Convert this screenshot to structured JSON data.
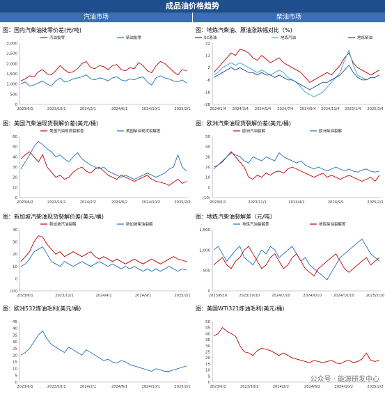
{
  "page_title": "成品油价格趋势",
  "left_header": "汽油市场",
  "right_header": "柴油市场",
  "watermark": "公众号 · 能源研发中心",
  "chart_data": [
    {
      "type": "line",
      "title": "图：国内汽柴油批零价差(元/吨)",
      "yticks": [
        "0",
        "500",
        "1,000",
        "1,500",
        "2,000",
        "2,500",
        "3,000"
      ],
      "ylim": [
        0,
        3000
      ],
      "xticks": [
        "2023/6/1",
        "2023/10/1",
        "2024/2/1",
        "2024/6/1",
        "2024/10/1",
        "2025/2/1"
      ],
      "series": [
        {
          "name": "汽油批零",
          "color": "#c00000",
          "values": [
            1150,
            1250,
            1400,
            1350,
            1600,
            1700,
            1500,
            1450,
            1650,
            1900,
            1700,
            1550,
            1600,
            1750,
            2000,
            2100,
            1800,
            1750,
            1900,
            1850,
            1700,
            1900,
            1950,
            1700,
            1650,
            1800,
            1750,
            2050,
            1900,
            1650,
            1550,
            1900,
            2100,
            2000,
            1800,
            1600,
            1450,
            1700,
            1650
          ]
        },
        {
          "name": "柴油批零",
          "color": "#1f6fc0",
          "values": [
            1000,
            1100,
            900,
            950,
            1050,
            1150,
            1000,
            900,
            1150,
            1300,
            1100,
            1150,
            1250,
            1300,
            1350,
            1450,
            1250,
            1200,
            1300,
            1250,
            1150,
            1300,
            1350,
            1200,
            1150,
            1250,
            1200,
            1300,
            1350,
            1100,
            950,
            1300,
            1400,
            1300,
            1250,
            1150,
            1100,
            1200,
            1050
          ]
        }
      ]
    },
    {
      "type": "line",
      "title": "图：地炼汽柴油、原油涨跌幅对比（%)",
      "yticks": [
        "-28",
        "-18",
        "-8",
        "2",
        "12",
        "22"
      ],
      "ylim": [
        -28,
        22
      ],
      "xticks": [
        "2024/1/4",
        "2024/3/4",
        "2024/5/4",
        "2024/7/4",
        "2024/9/4",
        "2024/11/4",
        "2025/1/4",
        "2025/3/4"
      ],
      "series": [
        {
          "name": "SC原油",
          "color": "#c00000",
          "values": [
            -2,
            2,
            6,
            10,
            14,
            12,
            17,
            16,
            14,
            10,
            8,
            12,
            9,
            6,
            8,
            10,
            6,
            4,
            2,
            0,
            -2,
            -6,
            -10,
            -8,
            -6,
            -4,
            -2,
            -4,
            0,
            4,
            10,
            14,
            6,
            2,
            0,
            -2,
            -4,
            -2,
            0
          ]
        },
        {
          "name": "地炼汽油",
          "color": "#33a5d9",
          "values": [
            -4,
            -2,
            2,
            4,
            6,
            4,
            6,
            4,
            2,
            0,
            -2,
            0,
            -2,
            -4,
            -2,
            0,
            -2,
            -6,
            -8,
            -10,
            -14,
            -18,
            -20,
            -22,
            -20,
            -18,
            -14,
            -10,
            -6,
            -2,
            8,
            16,
            4,
            -4,
            -6,
            -8,
            -6,
            -6,
            -4
          ]
        },
        {
          "name": "地炼柴油",
          "color": "#1f4e8c",
          "values": [
            -6,
            -4,
            -2,
            0,
            2,
            0,
            2,
            0,
            -2,
            -2,
            -4,
            -2,
            -4,
            -4,
            -6,
            -4,
            -6,
            -8,
            -8,
            -10,
            -12,
            -14,
            -16,
            -14,
            -12,
            -10,
            -10,
            -8,
            -6,
            -4,
            0,
            4,
            -2,
            -6,
            -8,
            -8,
            -6,
            -6,
            -4
          ]
        }
      ]
    },
    {
      "type": "line",
      "title": "图：美国汽柴油现货裂解价差(美元/桶)",
      "yticks": [
        "0",
        "10",
        "20",
        "30",
        "40",
        "50",
        "60"
      ],
      "ylim": [
        0,
        60
      ],
      "xticks": [
        "2023/6/2",
        "2023/10/2",
        "2024/2/2",
        "2024/6/2",
        "2024/10/2",
        "2025/2/2"
      ],
      "series": [
        {
          "name": "美国汽油现货裂解差",
          "color": "#c00000",
          "values": [
            38,
            42,
            45,
            40,
            35,
            42,
            30,
            25,
            20,
            22,
            18,
            20,
            25,
            28,
            30,
            26,
            24,
            28,
            30,
            26,
            22,
            20,
            18,
            22,
            20,
            18,
            16,
            18,
            20,
            22,
            18,
            16,
            15,
            14,
            12,
            15,
            18,
            14,
            16
          ]
        },
        {
          "name": "美国柴油现货裂解差",
          "color": "#1f6fc0",
          "values": [
            28,
            35,
            42,
            50,
            55,
            52,
            48,
            45,
            40,
            42,
            38,
            35,
            40,
            44,
            38,
            35,
            32,
            30,
            28,
            30,
            26,
            24,
            22,
            20,
            22,
            20,
            18,
            20,
            22,
            24,
            22,
            20,
            22,
            24,
            28,
            30,
            42,
            30,
            26
          ]
        }
      ]
    },
    {
      "type": "line",
      "title": "图：欧洲汽柴油现货裂解价差(美元/桶)",
      "yticks": [
        "(10)",
        "0",
        "10",
        "20",
        "30",
        "40",
        "50"
      ],
      "ylim": [
        -10,
        50
      ],
      "xticks": [
        "2023/6/1",
        "2023/11/1",
        "2024/4/1",
        "2024/9/1",
        "2025/2/1"
      ],
      "series": [
        {
          "name": "欧洲汽油裂解",
          "color": "#c00000",
          "values": [
            20,
            22,
            25,
            30,
            35,
            30,
            25,
            20,
            10,
            8,
            12,
            10,
            14,
            12,
            15,
            16,
            14,
            18,
            20,
            18,
            16,
            14,
            12,
            10,
            12,
            14,
            10,
            12,
            10,
            8,
            10,
            12,
            10,
            8,
            6,
            8,
            10,
            6,
            12
          ]
        },
        {
          "name": "欧洲柴油裂解",
          "color": "#1f6fc0",
          "values": [
            18,
            22,
            26,
            30,
            34,
            32,
            30,
            26,
            24,
            30,
            28,
            26,
            30,
            28,
            26,
            34,
            30,
            28,
            26,
            24,
            26,
            22,
            20,
            18,
            20,
            18,
            16,
            18,
            20,
            18,
            16,
            18,
            16,
            15,
            17,
            18,
            16,
            15,
            16
          ]
        }
      ]
    },
    {
      "type": "line",
      "title": "图：新加坡汽柴油现货裂解价差(美元/桶)",
      "yticks": [
        "(10)",
        "0",
        "10",
        "20",
        "30",
        "40"
      ],
      "ylim": [
        -10,
        40
      ],
      "xticks": [
        "2023/6/1",
        "2023/11/1",
        "2024/4/1",
        "2024/9/1",
        "2025/2/1"
      ],
      "series": [
        {
          "name": "新加坡汽油裂解",
          "color": "#c00000",
          "values": [
            14,
            18,
            22,
            30,
            35,
            34,
            28,
            24,
            20,
            22,
            18,
            20,
            22,
            20,
            18,
            20,
            22,
            18,
            16,
            18,
            16,
            14,
            16,
            14,
            12,
            14,
            16,
            14,
            12,
            14,
            16,
            14,
            12,
            14,
            16,
            18,
            16,
            15,
            14
          ]
        },
        {
          "name": "新加坡柴油裂解",
          "color": "#1f6fc0",
          "values": [
            10,
            12,
            16,
            22,
            24,
            26,
            20,
            14,
            12,
            10,
            14,
            12,
            10,
            12,
            14,
            12,
            10,
            12,
            14,
            12,
            10,
            12,
            10,
            8,
            10,
            8,
            10,
            8,
            6,
            8,
            6,
            8,
            6,
            8,
            10,
            8,
            6,
            8,
            7
          ]
        }
      ]
    },
    {
      "type": "line",
      "title": "图：地炼汽柴油裂解差（元/吨）",
      "yticks": [
        "0",
        "500",
        "1,000",
        "1,500"
      ],
      "ylim": [
        0,
        1650
      ],
      "xticks": [
        "2023/6/10",
        "2023/10/10",
        "2024/2/10",
        "2024/6/10",
        "2024/10/10",
        "2025/2/10"
      ],
      "series": [
        {
          "name": "地炼汽油裂解差",
          "color": "#1f6fc0",
          "values": [
            1100,
            1200,
            1000,
            800,
            950,
            1100,
            1200,
            900,
            800,
            700,
            900,
            1100,
            1000,
            1200,
            1100,
            900,
            1000,
            1100,
            1200,
            1000,
            800,
            900,
            700,
            600,
            500,
            400,
            300,
            500,
            700,
            900,
            1000,
            1100,
            1200,
            1300,
            1400,
            1200,
            1000,
            900,
            800
          ]
        },
        {
          "name": "地炼柴油裂解差",
          "color": "#c00000",
          "values": [
            700,
            800,
            900,
            700,
            600,
            800,
            900,
            1100,
            1200,
            1000,
            800,
            600,
            700,
            900,
            1000,
            800,
            600,
            700,
            900,
            1000,
            800,
            600,
            500,
            400,
            600,
            700,
            800,
            900,
            1000,
            800,
            600,
            500,
            600,
            700,
            800,
            900,
            700,
            800,
            900
          ]
        }
      ]
    },
    {
      "type": "line",
      "title": "图：欧洲532炼油毛利(美元/桶)",
      "yticks": [
        "0",
        "5",
        "10",
        "15",
        "20",
        "25",
        "30",
        "35",
        "40",
        "45"
      ],
      "ylim": [
        0,
        45
      ],
      "xticks": [
        "2023/6/1",
        "2023/10/1",
        "2024/2/1",
        "2024/6/1",
        "2024/10/1",
        "2025/2/1"
      ],
      "series": [
        {
          "name": "欧洲532炼油毛利",
          "color": "#1f6fc0",
          "values": [
            20,
            22,
            25,
            30,
            35,
            38,
            32,
            28,
            26,
            24,
            22,
            26,
            24,
            22,
            20,
            24,
            22,
            20,
            18,
            16,
            17,
            15,
            14,
            16,
            15,
            13,
            12,
            11,
            10,
            9,
            8,
            10,
            9,
            8,
            8,
            9,
            10,
            11,
            12
          ]
        }
      ]
    },
    {
      "type": "line",
      "title": "图：美国WTI321炼油毛利(美元/桶)",
      "yticks": [
        "0",
        "5",
        "10",
        "15",
        "20",
        "25",
        "30",
        "35",
        "40",
        "45",
        "50"
      ],
      "ylim": [
        0,
        50
      ],
      "xticks": [
        "2023/6/2",
        "2023/10/2",
        "2024/2/2",
        "2024/6/2",
        "2024/10/2",
        "2025/2/2"
      ],
      "series": [
        {
          "name": "美国WTI321炼油毛利",
          "color": "#c00000",
          "values": [
            38,
            40,
            45,
            42,
            40,
            38,
            30,
            25,
            24,
            22,
            26,
            28,
            27,
            26,
            24,
            22,
            24,
            22,
            20,
            19,
            18,
            17,
            16,
            18,
            17,
            16,
            17,
            18,
            16,
            15,
            17,
            18,
            16,
            17,
            19,
            24,
            18,
            17,
            18
          ]
        }
      ]
    }
  ]
}
